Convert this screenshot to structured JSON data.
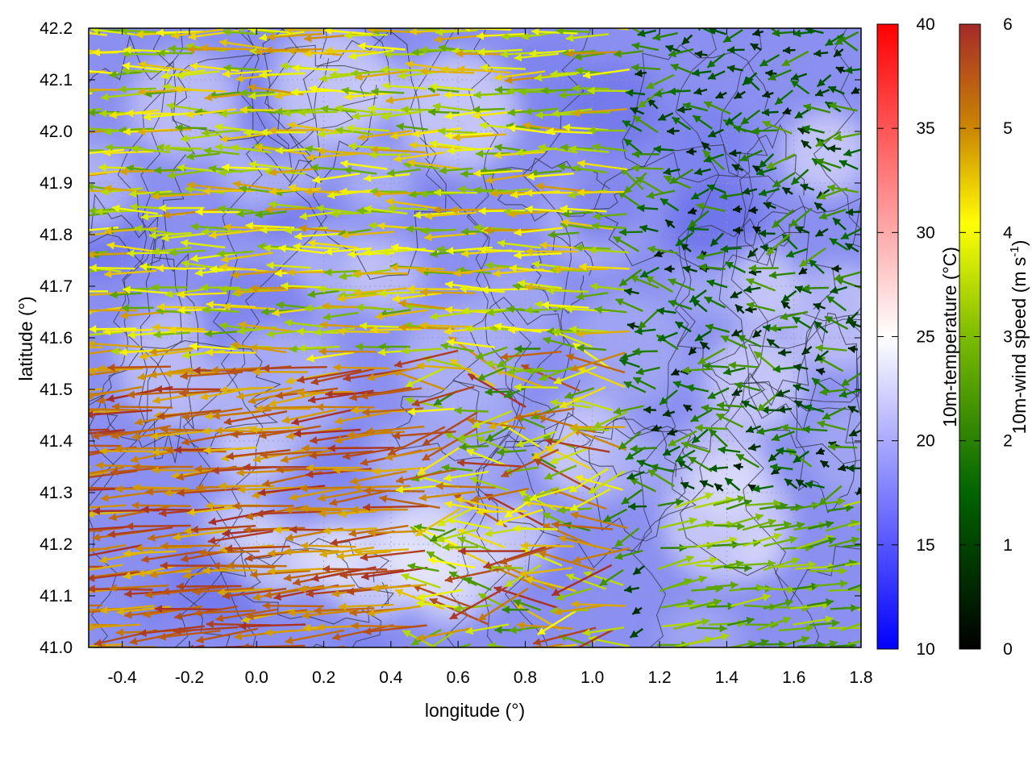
{
  "chart_data": {
    "type": "vector-field",
    "xlabel": "longitude (°)",
    "ylabel": "latitude (°)",
    "xlim": [
      -0.5,
      1.8
    ],
    "ylim": [
      41.0,
      42.2
    ],
    "x_ticks": [
      "-0.4",
      "-0.2",
      "0.0",
      "0.2",
      "0.4",
      "0.6",
      "0.8",
      "1.0",
      "1.2",
      "1.4",
      "1.6",
      "1.8"
    ],
    "x_tick_values": [
      -0.4,
      -0.2,
      0.0,
      0.2,
      0.4,
      0.6,
      0.8,
      1.0,
      1.2,
      1.4,
      1.6,
      1.8
    ],
    "y_ticks": [
      "41.0",
      "41.1",
      "41.2",
      "41.3",
      "41.4",
      "41.5",
      "41.6",
      "41.7",
      "41.8",
      "41.9",
      "42.0",
      "42.1",
      "42.2"
    ],
    "y_tick_values": [
      41.0,
      41.1,
      41.2,
      41.3,
      41.4,
      41.5,
      41.6,
      41.7,
      41.8,
      41.9,
      42.0,
      42.1,
      42.2
    ],
    "grid": true,
    "temperature_colorbar": {
      "label": "10m-temperature (°C)",
      "range": [
        10,
        40
      ],
      "ticks": [
        "10",
        "15",
        "20",
        "25",
        "30",
        "35",
        "40"
      ],
      "tick_values": [
        10,
        15,
        20,
        25,
        30,
        35,
        40
      ],
      "colors": [
        "#0000ff",
        "#ffffff",
        "#ff0000"
      ]
    },
    "wind_colorbar": {
      "label": "10m-wind speed (m s",
      "label_sup": "-1",
      "label_end": ")",
      "range": [
        0,
        6
      ],
      "ticks": [
        "0",
        "1",
        "2",
        "3",
        "4",
        "5",
        "6"
      ],
      "tick_values": [
        0,
        1,
        2,
        3,
        4,
        5,
        6
      ],
      "colors": [
        "#000000",
        "#006400",
        "#7cbb00",
        "#ffff00",
        "#cc8800",
        "#a52a2a"
      ]
    },
    "temperature_field_note": "",
    "wind_regimes": [
      {
        "region": "west",
        "direction": "westward",
        "speed_range": [
          3.5,
          6
        ]
      },
      {
        "region": "south-west",
        "direction": "westward",
        "speed_range": [
          5,
          6
        ]
      },
      {
        "region": "east",
        "direction": "variable",
        "speed_range": [
          0.5,
          2.5
        ]
      },
      {
        "region": "south-east",
        "direction": "eastward",
        "speed_range": [
          2,
          3.5
        ]
      }
    ]
  }
}
